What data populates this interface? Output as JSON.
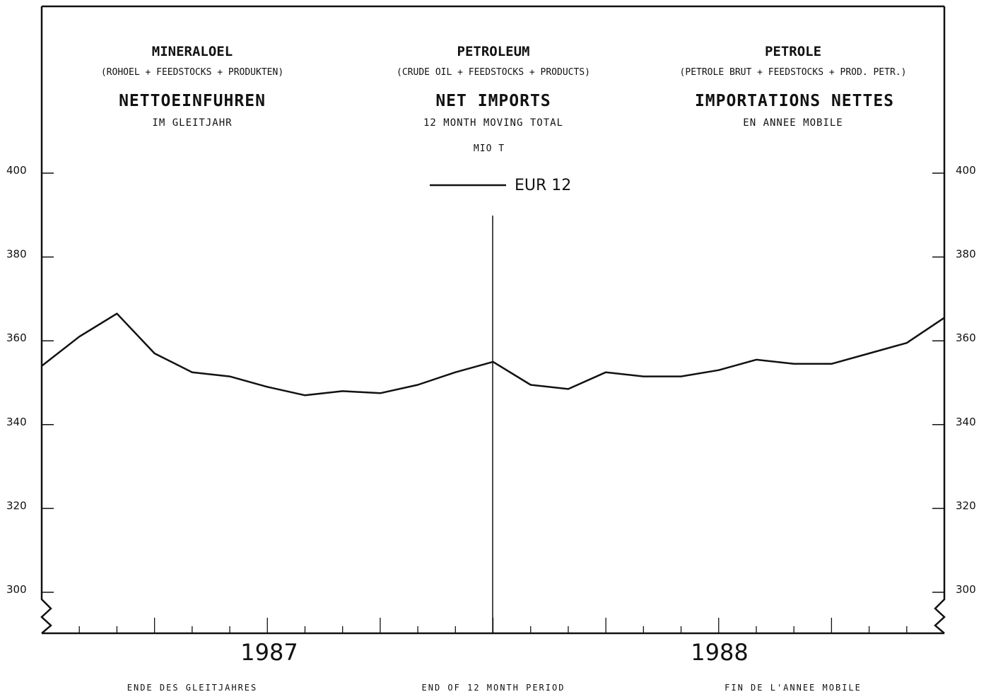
{
  "headings": {
    "de": {
      "title": "MINERALOEL",
      "subtitle": "(ROHOEL + FEEDSTOCKS + PRODUKTEN)",
      "main": "NETTOEINFUHREN",
      "note": "IM GLEITJAHR",
      "footer": "ENDE DES GLEITJAHRES"
    },
    "en": {
      "title": "PETROLEUM",
      "subtitle": "(CRUDE OIL + FEEDSTOCKS + PRODUCTS)",
      "main": "NET IMPORTS",
      "note": "12 MONTH MOVING TOTAL",
      "footer": "END OF 12 MONTH PERIOD"
    },
    "fr": {
      "title": "PETROLE",
      "subtitle": "(PETROLE BRUT + FEEDSTOCKS + PROD. PETR.)",
      "main": "IMPORTATIONS NETTES",
      "note": "EN ANNEE MOBILE",
      "footer": "FIN DE L'ANNEE MOBILE"
    },
    "unit": "MIO T"
  },
  "chart_data": {
    "type": "line",
    "ylabel": "MIO T",
    "ylim": [
      290,
      414
    ],
    "y_ticks": [
      "300",
      "320",
      "340",
      "360",
      "380",
      "400"
    ],
    "y_tick_values": [
      300,
      320,
      340,
      360,
      380,
      400
    ],
    "y_axis_break": true,
    "axis_both_sides": true,
    "year_labels": [
      "1987",
      "1988"
    ],
    "months_shown": 24,
    "series": [
      {
        "name": "EUR 12",
        "color": "#111111",
        "values": [
          354,
          361,
          366.5,
          357,
          352.5,
          351.5,
          349,
          347,
          348,
          347.5,
          349.5,
          352.5,
          355,
          349.5,
          348.5,
          352.5,
          351.5,
          351.5,
          353,
          355.5,
          354.5,
          354.5,
          357,
          359.5,
          365.5
        ]
      }
    ]
  }
}
